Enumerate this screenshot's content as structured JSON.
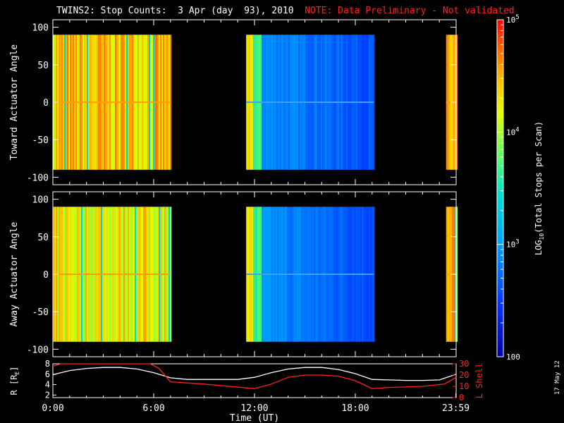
{
  "header": {
    "title": "TWINS2: Stop Counts:  3 Apr (day  93), 2010",
    "note": "NOTE: Data Preliminary - Not validated"
  },
  "stamp": "17 May 12",
  "colors": {
    "background": "#000000",
    "axes": "#ffffff",
    "r_line": "#ffffff",
    "lshell_line": "#ff2020",
    "note_text": "#ff2020"
  },
  "chart_data": [
    {
      "type": "heatmap",
      "panel": "top",
      "ylabel": "Toward Actuator Angle",
      "ylim": [
        -110,
        110
      ],
      "yticks": [
        "100",
        "50",
        "0",
        "-50",
        "-100"
      ],
      "xlim": [
        0,
        24
      ],
      "data_extent": [
        -90,
        90
      ],
      "value_scale": "log",
      "bands": [
        {
          "x": [
            0.0,
            7.0
          ],
          "level": 0.8
        },
        {
          "x": [
            11.5,
            19.1
          ],
          "level": 0.35
        },
        {
          "x": [
            23.4,
            24.0
          ],
          "level": 0.8
        }
      ]
    },
    {
      "type": "heatmap",
      "panel": "bottom",
      "ylabel": "Away Actuator Angle",
      "ylim": [
        -110,
        110
      ],
      "yticks": [
        "100",
        "50",
        "0",
        "-50",
        "-100"
      ],
      "xlim": [
        0,
        24
      ],
      "data_extent": [
        -90,
        90
      ],
      "value_scale": "log",
      "bands": [
        {
          "x": [
            0.0,
            7.0
          ],
          "level": 0.75
        },
        {
          "x": [
            11.5,
            19.1
          ],
          "level": 0.3
        },
        {
          "x": [
            23.4,
            24.0
          ],
          "level": 0.8
        }
      ]
    },
    {
      "type": "line",
      "panel": "ephemeris",
      "xlabel": "Time (UT)",
      "xticks": [
        "0:00",
        "6:00",
        "12:00",
        "18:00",
        "23:59"
      ],
      "xtick_hours": [
        0,
        6,
        12,
        18,
        23.98
      ],
      "ylabel_left": "R [R",
      "ylabel_left_sub": "E",
      "ylabel_left_end": "]",
      "ylabel_right": "L Shell",
      "left_ylim": [
        1.5,
        8
      ],
      "left_yticks": [
        "8",
        "6",
        "4",
        "2"
      ],
      "right_ylim": [
        0,
        30
      ],
      "right_yticks": [
        "30",
        "20",
        "10",
        "0"
      ],
      "series": [
        {
          "name": "R",
          "axis": "left",
          "x": [
            0,
            1,
            2,
            3,
            4,
            5,
            6,
            7,
            8,
            9,
            10,
            11,
            12,
            13,
            14,
            15,
            16,
            17,
            18,
            19,
            20,
            21,
            22,
            23,
            24
          ],
          "y": [
            5.9,
            6.7,
            7.1,
            7.3,
            7.3,
            7.0,
            6.3,
            5.3,
            5.0,
            5.0,
            5.0,
            5.0,
            5.4,
            6.3,
            7.0,
            7.3,
            7.3,
            6.9,
            6.1,
            5.0,
            4.9,
            4.8,
            4.8,
            4.9,
            6.0
          ]
        },
        {
          "name": "L Shell",
          "axis": "right",
          "x": [
            0,
            0.5,
            5.8,
            6.3,
            7.0,
            9,
            12,
            13,
            14,
            15,
            16,
            17,
            18,
            19,
            20,
            22,
            23.3,
            24
          ],
          "y": [
            28,
            33,
            33,
            26,
            14,
            12,
            8,
            12,
            18,
            20,
            20,
            19,
            15,
            8,
            9,
            10,
            12,
            18
          ]
        }
      ]
    }
  ],
  "colorbar": {
    "label_main": "LOG",
    "label_sub": "10",
    "label_rest": "(Total Stops per Scan)",
    "ticks": [
      {
        "base": "10",
        "exp": "5",
        "value": 100000
      },
      {
        "base": "10",
        "exp": "4",
        "value": 10000
      },
      {
        "base": "10",
        "exp": "3",
        "value": 1000
      },
      {
        "base": "100",
        "exp": "",
        "value": 100
      }
    ],
    "range": [
      100,
      100000
    ]
  }
}
